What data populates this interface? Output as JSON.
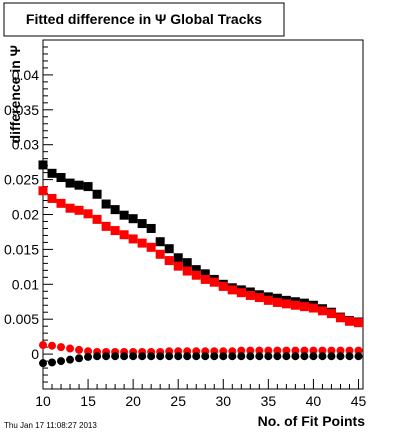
{
  "chart_data": {
    "type": "scatter",
    "title": "Fitted difference in Ψ   Global Tracks",
    "xlabel": "No. of Fit Points",
    "ylabel": "difference in Ψ",
    "xlim": [
      10,
      45.5
    ],
    "ylim": [
      -0.005,
      0.045
    ],
    "x_ticks": [
      "10",
      "15",
      "20",
      "25",
      "30",
      "35",
      "40",
      "45"
    ],
    "y_ticks": [
      "0",
      "0.005",
      "0.01",
      "0.015",
      "0.02",
      "0.025",
      "0.03",
      "0.035",
      "0.04"
    ],
    "grid": false,
    "series": [
      {
        "marker": "square",
        "color": "#000000",
        "x": [
          10,
          11,
          12,
          13,
          14,
          15,
          16,
          17,
          18,
          19,
          20,
          21,
          22,
          23,
          24,
          25,
          26,
          27,
          28,
          29,
          30,
          31,
          32,
          33,
          34,
          35,
          36,
          37,
          38,
          39,
          40,
          41,
          42,
          43,
          44,
          45
        ],
        "y": [
          0.0271,
          0.0259,
          0.0253,
          0.0245,
          0.0242,
          0.024,
          0.0229,
          0.0215,
          0.0207,
          0.0199,
          0.0194,
          0.0187,
          0.018,
          0.0161,
          0.0151,
          0.0138,
          0.0131,
          0.0121,
          0.0115,
          0.0107,
          0.01,
          0.0095,
          0.0092,
          0.0089,
          0.0085,
          0.0082,
          0.008,
          0.0077,
          0.0075,
          0.0073,
          0.007,
          0.0065,
          0.006,
          0.0053,
          0.0048,
          0.0046
        ]
      },
      {
        "marker": "square",
        "color": "#ff0000",
        "x": [
          10,
          11,
          12,
          13,
          14,
          15,
          16,
          17,
          18,
          19,
          20,
          21,
          22,
          23,
          24,
          25,
          26,
          27,
          28,
          29,
          30,
          31,
          32,
          33,
          34,
          35,
          36,
          37,
          38,
          39,
          40,
          41,
          42,
          43,
          44,
          45
        ],
        "y": [
          0.0234,
          0.0223,
          0.0216,
          0.0209,
          0.0206,
          0.0201,
          0.0193,
          0.0183,
          0.0177,
          0.0171,
          0.0165,
          0.0159,
          0.0153,
          0.0143,
          0.0134,
          0.0126,
          0.0119,
          0.0113,
          0.0107,
          0.0103,
          0.0097,
          0.0092,
          0.0088,
          0.0084,
          0.0081,
          0.0077,
          0.0074,
          0.0072,
          0.007,
          0.0068,
          0.0066,
          0.0062,
          0.0058,
          0.0052,
          0.0047,
          0.0045
        ]
      },
      {
        "marker": "circle",
        "color": "#ff0000",
        "x": [
          10,
          11,
          12,
          13,
          14,
          15,
          16,
          17,
          18,
          19,
          20,
          21,
          22,
          23,
          24,
          25,
          26,
          27,
          28,
          29,
          30,
          31,
          32,
          33,
          34,
          35,
          36,
          37,
          38,
          39,
          40,
          41,
          42,
          43,
          44,
          45
        ],
        "y": [
          0.0013,
          0.0012,
          0.001,
          0.0008,
          0.0006,
          0.0004,
          0.0003,
          0.0003,
          0.0003,
          0.0003,
          0.0003,
          0.0003,
          0.0003,
          0.0003,
          0.0004,
          0.0004,
          0.0004,
          0.0004,
          0.0004,
          0.0004,
          0.0004,
          0.0004,
          0.0005,
          0.0005,
          0.0005,
          0.0005,
          0.0005,
          0.0005,
          0.0005,
          0.0005,
          0.0005,
          0.0005,
          0.0005,
          0.0005,
          0.0005,
          0.0005
        ]
      },
      {
        "marker": "circle",
        "color": "#000000",
        "x": [
          10,
          11,
          12,
          13,
          14,
          15,
          16,
          17,
          18,
          19,
          20,
          21,
          22,
          23,
          24,
          25,
          26,
          27,
          28,
          29,
          30,
          31,
          32,
          33,
          34,
          35,
          36,
          37,
          38,
          39,
          40,
          41,
          42,
          43,
          44,
          45
        ],
        "y": [
          -0.0013,
          -0.0012,
          -0.001,
          -0.0008,
          -0.0006,
          -0.0004,
          -0.0003,
          -0.0003,
          -0.0003,
          -0.0003,
          -0.0003,
          -0.0003,
          -0.0003,
          -0.0003,
          -0.0003,
          -0.0003,
          -0.0003,
          -0.0003,
          -0.0003,
          -0.0003,
          -0.0003,
          -0.0003,
          -0.0003,
          -0.0003,
          -0.0003,
          -0.0003,
          -0.0003,
          -0.0003,
          -0.0003,
          -0.0003,
          -0.0003,
          -0.0003,
          -0.0003,
          -0.0003,
          -0.0003,
          -0.0003
        ]
      }
    ]
  },
  "timestamp": "Thu Jan 17 11:08:27 2013"
}
